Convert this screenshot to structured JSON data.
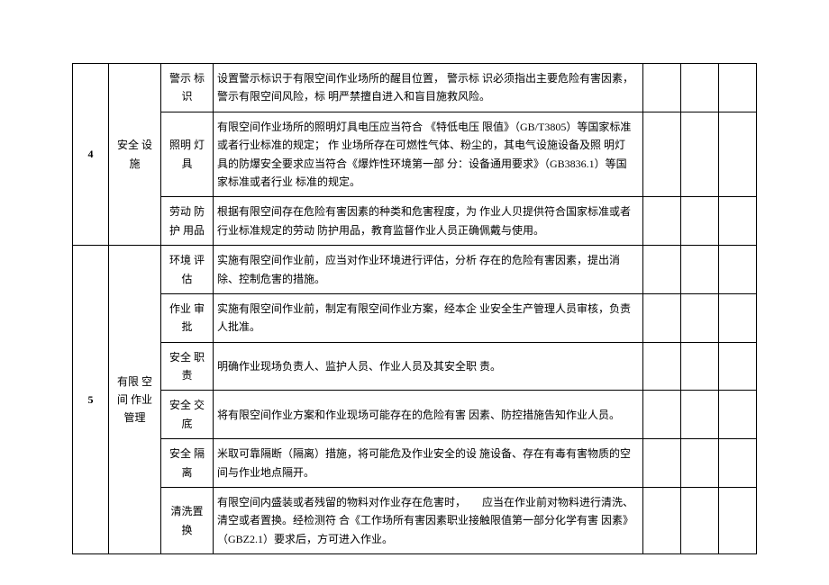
{
  "rows": [
    {
      "num": "4",
      "category": "安全 设施",
      "items": [
        {
          "sub": "警示 标识",
          "desc": "设置警示标识于有限空间作业场所的醒目位置， 警示标 识必须指出主要危险有害因素，警示有限空间风险，标 明严禁擅自进入和盲目施救风险。"
        },
        {
          "sub": "照明 灯具",
          "desc": "有限空间作业场所的照明灯具电压应当符合 《特低电压 限值》（GB/T3805）等国家标准或者行业标准的规定； 作 业场所存在可燃性气体、粉尘的，其电气设施设备及照 明灯具的防爆安全要求应当符合《爆炸性环境第一部 分：设备通用要求》（GB3836.1）等国家标准或者行业 标准的规定。"
        },
        {
          "sub": "劳动 防护 用品",
          "desc": "根据有限空间存在危险有害因素的种类和危害程度，为 作业人贝提供符合国家标准或者行业标准规定的劳动 防护用品，教育监督作业人员正确佩戴与使用。"
        }
      ]
    },
    {
      "num": "5",
      "category": "有限 空间 作业管理",
      "items": [
        {
          "sub": "环境 评估",
          "desc": "实施有限空间作业前，应当对作业环境进行评估，分析 存在的危险有害因素，提出消除、控制危害的措施。"
        },
        {
          "sub": "作业 审批",
          "desc": "实施有限空间作业前，制定有限空间作业方案，经本企 业安全生产管理人员审核，负责人批准。"
        },
        {
          "sub": "安全 职责",
          "desc": "明确作业现场负责人、监护人员、作业人员及其安全职 责。"
        },
        {
          "sub": "安全 交底",
          "desc": "将有限空间作业方案和作业现场可能存在的危险有害 因素、防控措施告知作业人员。"
        },
        {
          "sub": "安全 隔离",
          "desc": "米取可靠隔断（隔离）措施，将可能危及作业安全的设 施设备、存在有毒有害物质的空间与作业地点隔开。"
        },
        {
          "sub": "清洗置换",
          "desc": "有限空间内盛装或者残留的物料对作业存在危害时，　　应当在作业前对物料进行清洗、清空或者置换。经检测符 合《工作场所有害因素职业接触限值第一部分化学有害 因素》（GBZ2.1）要求后，方可进入作业。"
        }
      ]
    }
  ]
}
